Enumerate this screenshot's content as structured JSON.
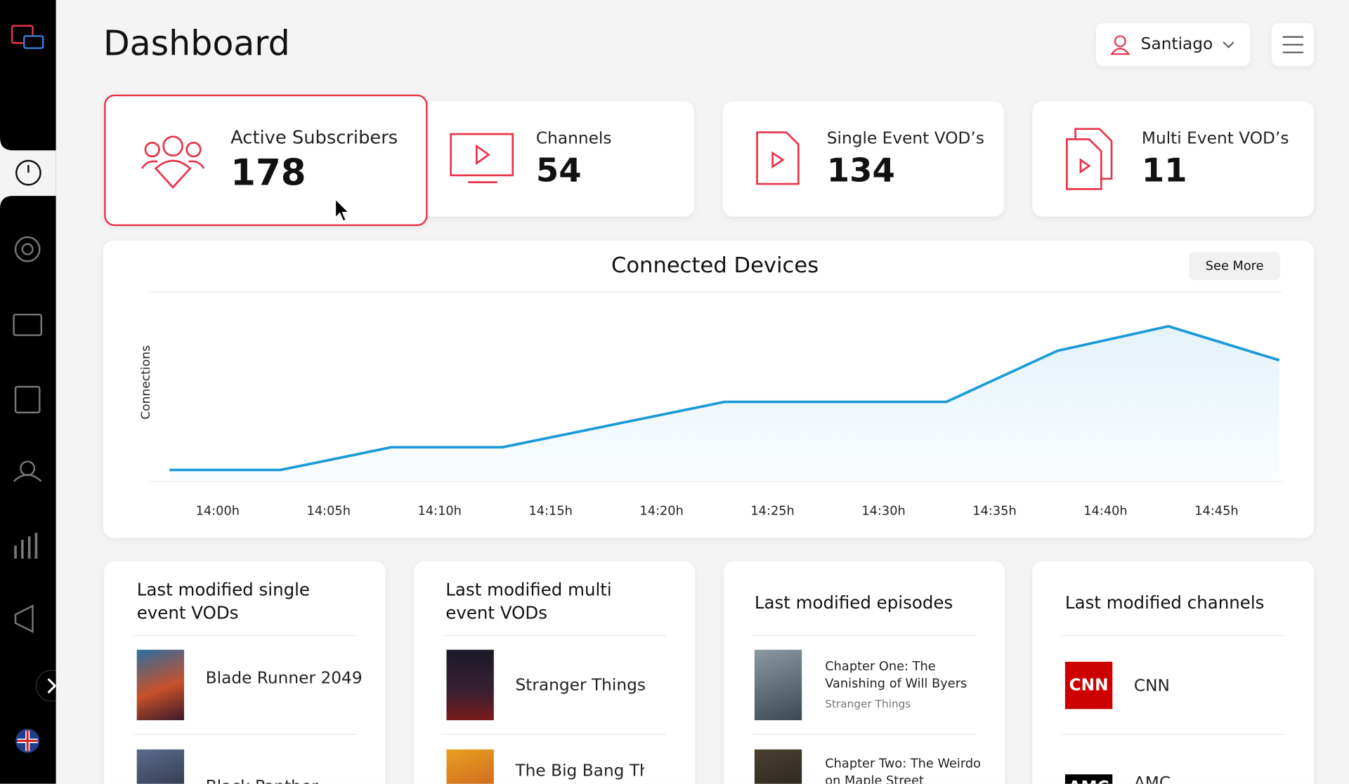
{
  "header": {
    "title": "Dashboard",
    "user": "Santiago"
  },
  "stats": [
    {
      "label": "Active Subscribers",
      "value": 178
    },
    {
      "label": "Channels",
      "value": 54
    },
    {
      "label": "Single Event VOD’s",
      "value": 134
    },
    {
      "label": "Multi Event VOD’s",
      "value": 11
    }
  ],
  "chart_data": {
    "type": "line",
    "title": "Connected Devices",
    "button": "See More",
    "y_label": "Connections",
    "categories": [
      "14:00h",
      "14:05h",
      "14:10h",
      "14:15h",
      "14:20h",
      "14:25h",
      "14:30h",
      "14:35h",
      "14:40h",
      "14:45h",
      null
    ],
    "series": [
      {
        "color": "#1a9ad6",
        "values": [
          6,
          6,
          18,
          18,
          30,
          42,
          42,
          42,
          69,
          82,
          64
        ]
      }
    ],
    "ylim": [
      0,
      100
    ]
  },
  "lists": [
    {
      "title": "Last modified single event VODs",
      "items": [
        {
          "title": "Blade Runner 2049"
        },
        {
          "title": "Black Panther"
        }
      ]
    },
    {
      "title": "Last modified multi event VODs",
      "items": [
        {
          "title": "Stranger Things"
        },
        {
          "title": "The Big Bang Theory"
        }
      ]
    },
    {
      "title": "Last modified episodes",
      "items": [
        {
          "title": "Chapter One: The Vanishing of Will Byers",
          "subtitle": "Stranger Things"
        },
        {
          "title": "Chapter Two: The Weirdo on Maple Street"
        }
      ]
    },
    {
      "title": "Last modified channels",
      "items": [
        {
          "title": "CNN"
        },
        {
          "title": "AMC"
        }
      ]
    }
  ]
}
